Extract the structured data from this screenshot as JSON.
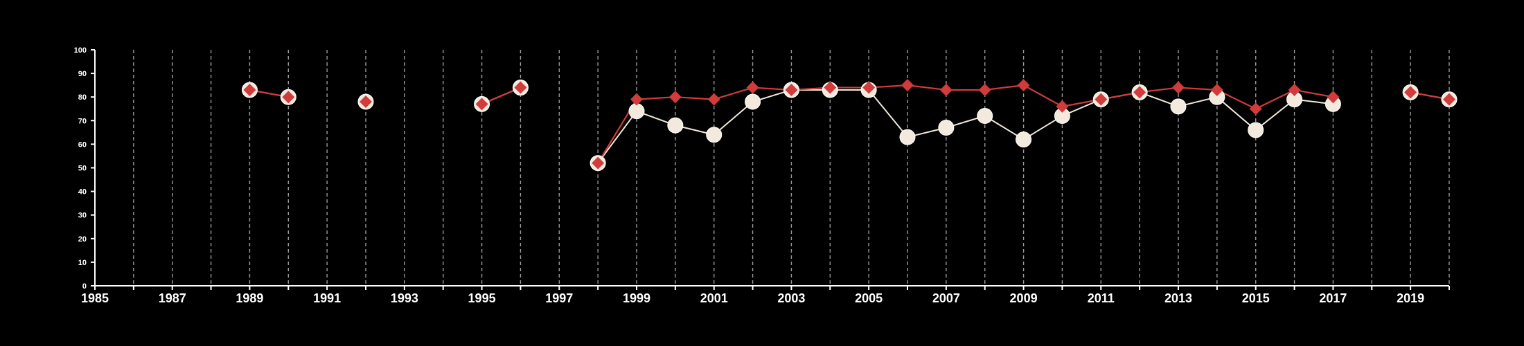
{
  "chart_data": {
    "type": "line",
    "xlim": [
      1985,
      2020
    ],
    "ylim": [
      0,
      100
    ],
    "x_ticks": [
      1985,
      1986,
      1987,
      1988,
      1989,
      1990,
      1991,
      1992,
      1993,
      1994,
      1995,
      1996,
      1997,
      1998,
      1999,
      2000,
      2001,
      2002,
      2003,
      2004,
      2005,
      2006,
      2007,
      2008,
      2009,
      2010,
      2011,
      2012,
      2013,
      2014,
      2015,
      2016,
      2017,
      2018,
      2019,
      2020
    ],
    "x_tick_labels": [
      "1985",
      "1987",
      "1989",
      "1991",
      "1993",
      "1995",
      "1997",
      "1999",
      "2001",
      "2003",
      "2005",
      "2007",
      "2009",
      "2011",
      "2013",
      "2015",
      "2017",
      "2019"
    ],
    "y_tick_labels": [
      "0",
      "10",
      "20",
      "30",
      "40",
      "50",
      "60",
      "70",
      "80",
      "90",
      "100"
    ],
    "grid": "vertical dashed lines at every year",
    "colors": {
      "background": "#000000",
      "axis": "#ffffff",
      "grid": "#9a9a9a",
      "series_red": "#d13b3b",
      "series_cream": "#f3e9dc"
    },
    "series": [
      {
        "marker": "circle",
        "color": "#f3e9dc",
        "points": [
          [
            1989,
            83
          ],
          [
            1990,
            80
          ],
          [
            1992,
            78
          ],
          [
            1995,
            77
          ],
          [
            1996,
            84
          ],
          [
            1998,
            52
          ],
          [
            1999,
            74
          ],
          [
            2000,
            68
          ],
          [
            2001,
            64
          ],
          [
            2002,
            78
          ],
          [
            2003,
            83
          ],
          [
            2004,
            83
          ],
          [
            2005,
            83
          ],
          [
            2006,
            63
          ],
          [
            2007,
            67
          ],
          [
            2008,
            72
          ],
          [
            2009,
            62
          ],
          [
            2010,
            72
          ],
          [
            2011,
            79
          ],
          [
            2012,
            82
          ],
          [
            2013,
            76
          ],
          [
            2014,
            80
          ],
          [
            2015,
            66
          ],
          [
            2016,
            79
          ],
          [
            2017,
            77
          ],
          [
            2019,
            82
          ],
          [
            2020,
            79
          ]
        ]
      },
      {
        "marker": "diamond",
        "color": "#d13b3b",
        "points": [
          [
            1989,
            83
          ],
          [
            1990,
            80
          ],
          [
            1992,
            78
          ],
          [
            1995,
            77
          ],
          [
            1996,
            84
          ],
          [
            1998,
            52
          ],
          [
            1999,
            79
          ],
          [
            2000,
            80
          ],
          [
            2001,
            79
          ],
          [
            2002,
            84
          ],
          [
            2003,
            83
          ],
          [
            2004,
            84
          ],
          [
            2005,
            84
          ],
          [
            2006,
            85
          ],
          [
            2007,
            83
          ],
          [
            2008,
            83
          ],
          [
            2009,
            85
          ],
          [
            2010,
            76
          ],
          [
            2011,
            79
          ],
          [
            2012,
            82
          ],
          [
            2013,
            84
          ],
          [
            2014,
            83
          ],
          [
            2015,
            75
          ],
          [
            2016,
            83
          ],
          [
            2017,
            80
          ],
          [
            2019,
            82
          ],
          [
            2020,
            79
          ]
        ]
      }
    ]
  }
}
